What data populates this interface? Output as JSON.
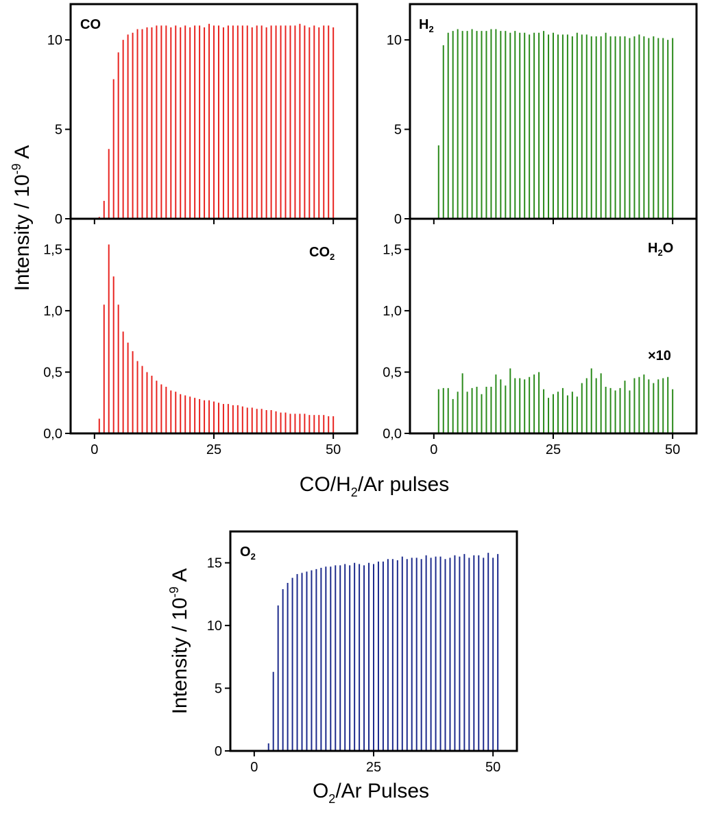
{
  "figure": {
    "ylabel_top": "Intensity / 10",
    "ylabel_top_exp": "-9",
    "ylabel_top_unit": " A",
    "xlabel_top_a": "CO/H",
    "xlabel_top_sub": "2",
    "xlabel_top_b": "/Ar pulses",
    "ylabel_bottom": "Intensity / 10",
    "ylabel_bottom_exp": "-9",
    "ylabel_bottom_unit": " A",
    "xlabel_bottom_a": "O",
    "xlabel_bottom_sub": "2",
    "xlabel_bottom_b": "/Ar Pulses"
  },
  "panels": {
    "co": {
      "label": "CO",
      "sub": ""
    },
    "h2": {
      "label": "H",
      "sub": "2"
    },
    "co2": {
      "label": "CO",
      "sub": "2"
    },
    "h2o": {
      "label_a": "H",
      "sub": "2",
      "label_b": "O",
      "annotation": "×10"
    },
    "o2": {
      "label": "O",
      "sub": "2"
    }
  },
  "chart_data": [
    {
      "id": "co",
      "type": "bar",
      "title": "CO",
      "color": "#e8231f",
      "xlim": [
        -5,
        55
      ],
      "ylim": [
        0,
        12
      ],
      "yticks": [
        0,
        5,
        10
      ],
      "ytick_labels": [
        "0",
        "5",
        "10"
      ],
      "xticks": [
        0,
        25,
        50
      ],
      "xtick_labels": [],
      "x_start": 1,
      "values": [
        0.1,
        1.0,
        3.9,
        7.8,
        9.3,
        10.0,
        10.3,
        10.4,
        10.6,
        10.6,
        10.7,
        10.7,
        10.8,
        10.8,
        10.8,
        10.7,
        10.8,
        10.7,
        10.8,
        10.7,
        10.8,
        10.8,
        10.7,
        10.9,
        10.8,
        10.8,
        10.7,
        10.8,
        10.8,
        10.8,
        10.8,
        10.8,
        10.7,
        10.8,
        10.8,
        10.7,
        10.8,
        10.8,
        10.8,
        10.8,
        10.8,
        10.8,
        10.9,
        10.8,
        10.7,
        10.8,
        10.7,
        10.8,
        10.8,
        10.7
      ]
    },
    {
      "id": "h2",
      "type": "bar",
      "title": "H2",
      "color": "#2a8a1a",
      "xlim": [
        -5,
        55
      ],
      "ylim": [
        0,
        12
      ],
      "yticks": [
        0,
        5,
        10
      ],
      "ytick_labels": [
        "0",
        "5",
        "10"
      ],
      "xticks": [
        0,
        25,
        50
      ],
      "xtick_labels": [],
      "x_start": 1,
      "values": [
        4.1,
        9.7,
        10.4,
        10.5,
        10.6,
        10.5,
        10.5,
        10.6,
        10.5,
        10.5,
        10.5,
        10.6,
        10.6,
        10.5,
        10.5,
        10.4,
        10.5,
        10.4,
        10.4,
        10.3,
        10.4,
        10.4,
        10.5,
        10.3,
        10.4,
        10.3,
        10.3,
        10.3,
        10.2,
        10.4,
        10.3,
        10.3,
        10.2,
        10.2,
        10.2,
        10.4,
        10.2,
        10.2,
        10.2,
        10.2,
        10.1,
        10.2,
        10.3,
        10.2,
        10.1,
        10.2,
        10.1,
        10.1,
        10.0,
        10.1
      ]
    },
    {
      "id": "co2",
      "type": "bar",
      "title": "CO2",
      "color": "#e8231f",
      "xlim": [
        -5,
        55
      ],
      "ylim": [
        0,
        1.75
      ],
      "yticks": [
        0,
        0.5,
        1.0,
        1.5
      ],
      "ytick_labels": [
        "0,0",
        "0,5",
        "1,0",
        "1,5"
      ],
      "xticks": [
        0,
        25,
        50
      ],
      "xtick_labels": [
        "0",
        "25",
        "50"
      ],
      "x_start": 1,
      "values": [
        0.12,
        1.05,
        1.54,
        1.28,
        1.05,
        0.83,
        0.74,
        0.67,
        0.59,
        0.55,
        0.5,
        0.47,
        0.43,
        0.4,
        0.38,
        0.35,
        0.34,
        0.32,
        0.31,
        0.3,
        0.29,
        0.28,
        0.27,
        0.27,
        0.26,
        0.25,
        0.24,
        0.24,
        0.23,
        0.23,
        0.22,
        0.21,
        0.21,
        0.2,
        0.2,
        0.19,
        0.19,
        0.18,
        0.17,
        0.17,
        0.16,
        0.16,
        0.16,
        0.16,
        0.15,
        0.15,
        0.15,
        0.15,
        0.14,
        0.14
      ]
    },
    {
      "id": "h2o",
      "type": "bar",
      "title": "H2O",
      "annotation": "×10",
      "color": "#2a8a1a",
      "xlim": [
        -5,
        55
      ],
      "ylim": [
        0,
        1.75
      ],
      "yticks": [
        0,
        0.5,
        1.0,
        1.5
      ],
      "ytick_labels": [
        "0,0",
        "0,5",
        "1,0",
        "1,5"
      ],
      "xticks": [
        0,
        25,
        50
      ],
      "xtick_labels": [
        "0",
        "25",
        "50"
      ],
      "x_start": 1,
      "values": [
        0.36,
        0.37,
        0.37,
        0.28,
        0.34,
        0.49,
        0.34,
        0.37,
        0.38,
        0.32,
        0.38,
        0.38,
        0.48,
        0.44,
        0.39,
        0.53,
        0.45,
        0.45,
        0.44,
        0.46,
        0.48,
        0.5,
        0.36,
        0.29,
        0.32,
        0.34,
        0.37,
        0.31,
        0.34,
        0.3,
        0.41,
        0.45,
        0.53,
        0.45,
        0.49,
        0.38,
        0.37,
        0.35,
        0.37,
        0.43,
        0.35,
        0.45,
        0.46,
        0.48,
        0.44,
        0.41,
        0.44,
        0.45,
        0.46,
        0.36
      ]
    },
    {
      "id": "o2",
      "type": "bar",
      "title": "O2",
      "color": "#1c2a8c",
      "xlim": [
        -5,
        55
      ],
      "ylim": [
        0,
        17.5
      ],
      "yticks": [
        0,
        5,
        10,
        15
      ],
      "ytick_labels": [
        "0",
        "5",
        "10",
        "15"
      ],
      "xticks": [
        0,
        25,
        50
      ],
      "xtick_labels": [
        "0",
        "25",
        "50"
      ],
      "x_start": 3,
      "values": [
        0.6,
        6.3,
        11.6,
        12.9,
        13.4,
        13.8,
        14.1,
        14.2,
        14.3,
        14.4,
        14.5,
        14.6,
        14.7,
        14.7,
        14.8,
        14.8,
        14.9,
        14.8,
        15.0,
        14.9,
        14.8,
        15.0,
        14.9,
        15.1,
        15.1,
        15.3,
        15.3,
        15.2,
        15.5,
        15.3,
        15.4,
        15.4,
        15.3,
        15.6,
        15.4,
        15.5,
        15.5,
        15.3,
        15.4,
        15.6,
        15.5,
        15.7,
        15.4,
        15.6,
        15.6,
        15.4,
        15.8,
        15.4,
        15.7
      ]
    }
  ]
}
